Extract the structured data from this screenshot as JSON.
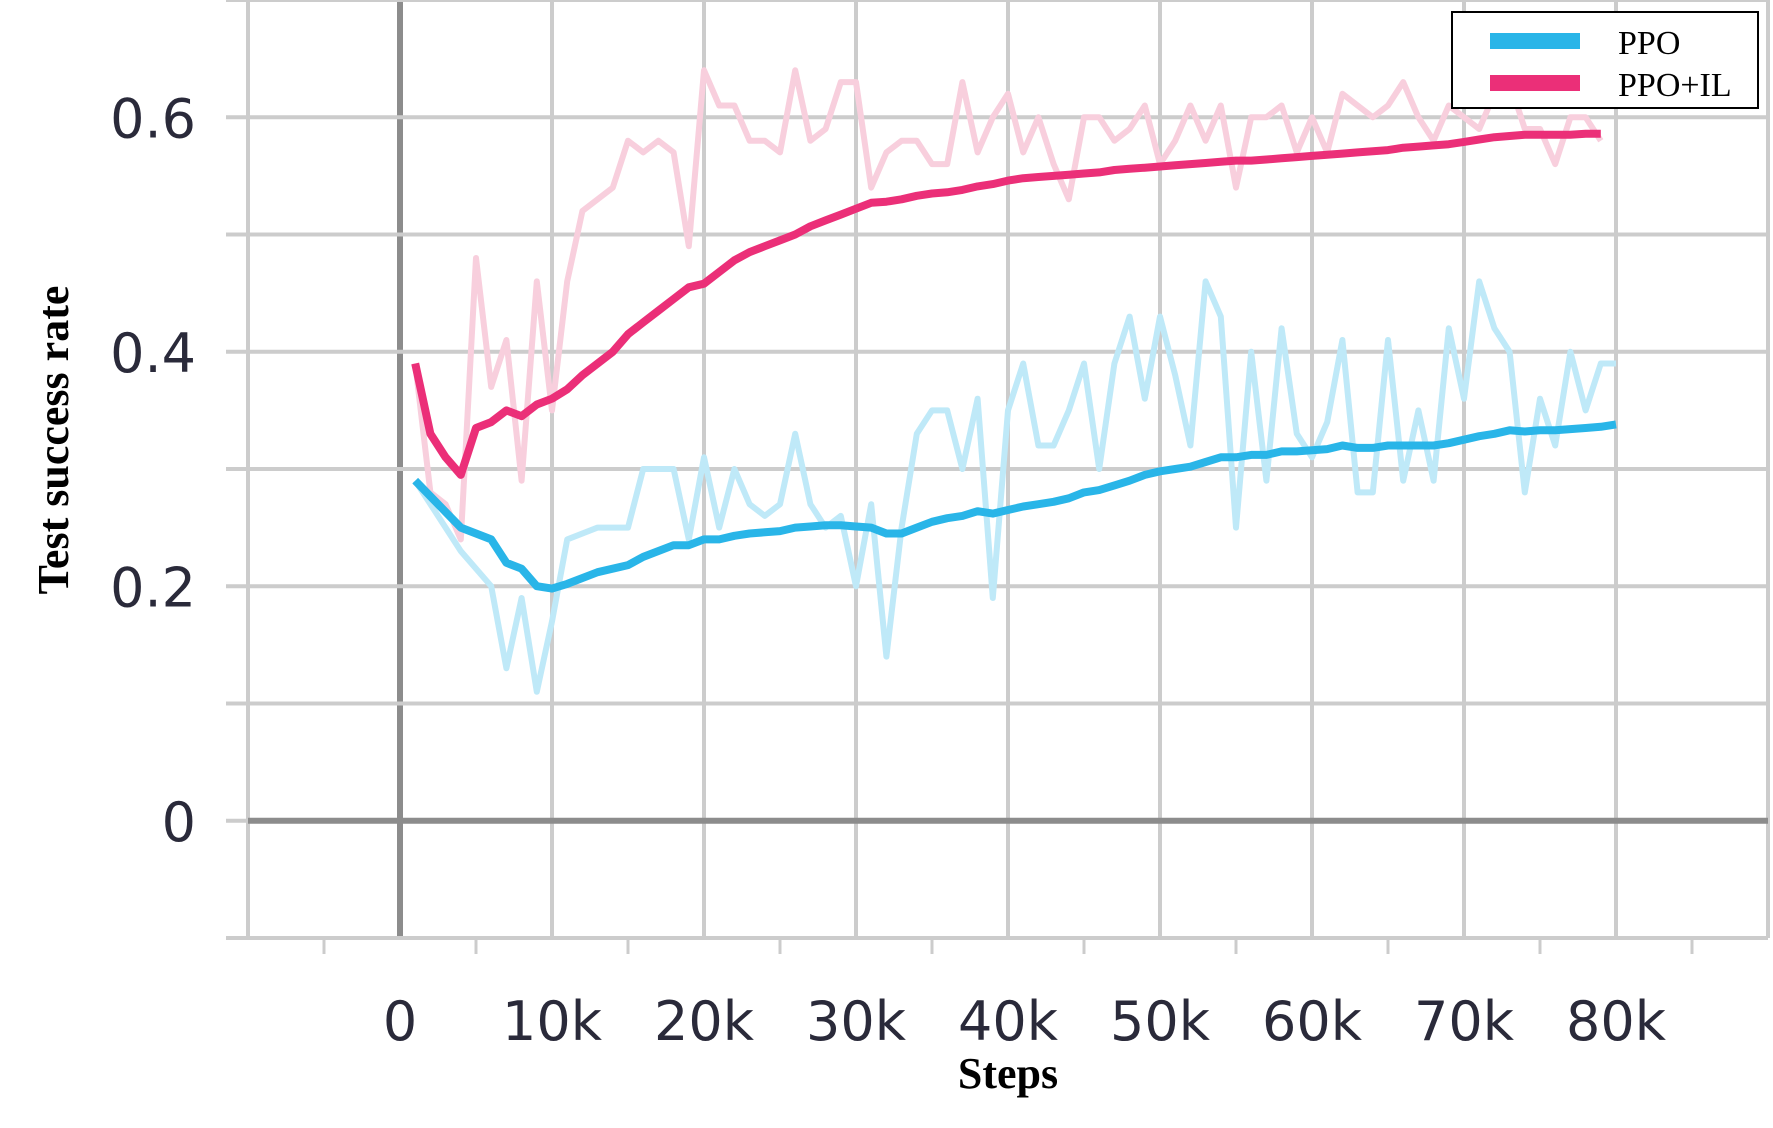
{
  "chart_data": {
    "type": "line",
    "xlabel": "Steps",
    "ylabel": "Test success rate",
    "xlim": [
      -10000,
      90000
    ],
    "ylim": [
      -0.1,
      0.7
    ],
    "x_ticks": [
      {
        "value": 0,
        "label": "0"
      },
      {
        "value": 10000,
        "label": "10k"
      },
      {
        "value": 20000,
        "label": "20k"
      },
      {
        "value": 30000,
        "label": "30k"
      },
      {
        "value": 40000,
        "label": "40k"
      },
      {
        "value": 50000,
        "label": "50k"
      },
      {
        "value": 60000,
        "label": "60k"
      },
      {
        "value": 70000,
        "label": "70k"
      },
      {
        "value": 80000,
        "label": "80k"
      }
    ],
    "y_ticks": [
      {
        "value": 0,
        "label": "0"
      },
      {
        "value": 0.2,
        "label": "0.2"
      },
      {
        "value": 0.4,
        "label": "0.4"
      },
      {
        "value": 0.6,
        "label": "0.6"
      }
    ],
    "grid": true,
    "legend_position": "top-right",
    "series": [
      {
        "name": "PPO",
        "color": "#29b5e8",
        "raw_color": "#bfe9f8",
        "x": [
          1000,
          4000,
          6000,
          7000,
          8000,
          9000,
          10000,
          11000,
          13000,
          15000,
          16000,
          18000,
          19000,
          20000,
          21000,
          22000,
          23000,
          24000,
          25000,
          26000,
          27000,
          28000,
          29000,
          30000,
          31000,
          32000,
          33000,
          34000,
          35000,
          36000,
          37000,
          38000,
          39000,
          40000,
          41000,
          42000,
          43000,
          44000,
          45000,
          46000,
          47000,
          48000,
          49000,
          50000,
          51000,
          52000,
          53000,
          54000,
          55000,
          56000,
          57000,
          58000,
          59000,
          60000,
          61000,
          62000,
          63000,
          64000,
          65000,
          66000,
          67000,
          68000,
          69000,
          70000,
          71000,
          72000,
          73000,
          74000,
          75000,
          76000,
          77000,
          78000,
          79000,
          80000
        ],
        "raw": [
          0.29,
          0.23,
          0.2,
          0.13,
          0.19,
          0.11,
          0.17,
          0.24,
          0.25,
          0.25,
          0.3,
          0.3,
          0.24,
          0.31,
          0.25,
          0.3,
          0.27,
          0.26,
          0.27,
          0.33,
          0.27,
          0.25,
          0.26,
          0.2,
          0.27,
          0.14,
          0.25,
          0.33,
          0.35,
          0.35,
          0.3,
          0.36,
          0.19,
          0.35,
          0.39,
          0.32,
          0.32,
          0.35,
          0.39,
          0.3,
          0.39,
          0.43,
          0.36,
          0.43,
          0.38,
          0.32,
          0.46,
          0.43,
          0.25,
          0.4,
          0.29,
          0.42,
          0.33,
          0.31,
          0.34,
          0.41,
          0.28,
          0.28,
          0.41,
          0.29,
          0.35,
          0.29,
          0.42,
          0.36,
          0.46,
          0.42,
          0.4,
          0.28,
          0.36,
          0.32,
          0.4,
          0.35,
          0.39,
          0.39
        ],
        "smooth": [
          0.29,
          0.25,
          0.24,
          0.22,
          0.215,
          0.2,
          0.198,
          0.202,
          0.212,
          0.218,
          0.225,
          0.235,
          0.235,
          0.24,
          0.24,
          0.243,
          0.245,
          0.246,
          0.247,
          0.25,
          0.251,
          0.252,
          0.252,
          0.251,
          0.25,
          0.245,
          0.245,
          0.25,
          0.255,
          0.258,
          0.26,
          0.264,
          0.262,
          0.265,
          0.268,
          0.27,
          0.272,
          0.275,
          0.28,
          0.282,
          0.286,
          0.29,
          0.295,
          0.298,
          0.3,
          0.302,
          0.306,
          0.31,
          0.31,
          0.312,
          0.312,
          0.315,
          0.315,
          0.316,
          0.317,
          0.32,
          0.318,
          0.318,
          0.32,
          0.32,
          0.32,
          0.32,
          0.322,
          0.325,
          0.328,
          0.33,
          0.333,
          0.332,
          0.333,
          0.333,
          0.334,
          0.335,
          0.336,
          0.338
        ]
      },
      {
        "name": "PPO+IL",
        "color": "#eb2f78",
        "raw_color": "#f8cfdd",
        "x": [
          1000,
          2000,
          3000,
          4000,
          5000,
          6000,
          7000,
          8000,
          9000,
          10000,
          11000,
          12000,
          14000,
          15000,
          16000,
          17000,
          18000,
          19000,
          20000,
          21000,
          22000,
          23000,
          24000,
          25000,
          26000,
          27000,
          28000,
          29000,
          30000,
          31000,
          32000,
          33000,
          34000,
          35000,
          36000,
          37000,
          38000,
          39000,
          40000,
          41000,
          42000,
          43000,
          44000,
          45000,
          46000,
          47000,
          48000,
          49000,
          50000,
          51000,
          52000,
          53000,
          54000,
          55000,
          56000,
          57000,
          58000,
          59000,
          60000,
          61000,
          62000,
          63000,
          64000,
          65000,
          66000,
          67000,
          68000,
          69000,
          70000,
          71000,
          72000,
          73000,
          74000,
          75000,
          76000,
          77000,
          78000,
          79000
        ],
        "raw": [
          0.39,
          0.28,
          0.27,
          0.24,
          0.48,
          0.37,
          0.41,
          0.29,
          0.46,
          0.35,
          0.46,
          0.52,
          0.54,
          0.58,
          0.57,
          0.58,
          0.57,
          0.49,
          0.64,
          0.61,
          0.61,
          0.58,
          0.58,
          0.57,
          0.64,
          0.58,
          0.59,
          0.63,
          0.63,
          0.54,
          0.57,
          0.58,
          0.58,
          0.56,
          0.56,
          0.63,
          0.57,
          0.6,
          0.62,
          0.57,
          0.6,
          0.56,
          0.53,
          0.6,
          0.6,
          0.58,
          0.59,
          0.61,
          0.56,
          0.58,
          0.61,
          0.58,
          0.61,
          0.54,
          0.6,
          0.6,
          0.61,
          0.57,
          0.6,
          0.57,
          0.62,
          0.61,
          0.6,
          0.61,
          0.63,
          0.6,
          0.58,
          0.61,
          0.6,
          0.59,
          0.62,
          0.63,
          0.59,
          0.59,
          0.56,
          0.6,
          0.6,
          0.58
        ],
        "smooth": [
          0.39,
          0.33,
          0.31,
          0.295,
          0.335,
          0.34,
          0.35,
          0.345,
          0.355,
          0.36,
          0.368,
          0.38,
          0.4,
          0.415,
          0.425,
          0.435,
          0.445,
          0.455,
          0.458,
          0.468,
          0.478,
          0.485,
          0.49,
          0.495,
          0.5,
          0.507,
          0.512,
          0.517,
          0.522,
          0.527,
          0.528,
          0.53,
          0.533,
          0.535,
          0.536,
          0.538,
          0.541,
          0.543,
          0.546,
          0.548,
          0.549,
          0.55,
          0.551,
          0.552,
          0.553,
          0.555,
          0.556,
          0.557,
          0.558,
          0.559,
          0.56,
          0.561,
          0.562,
          0.563,
          0.563,
          0.564,
          0.565,
          0.566,
          0.567,
          0.568,
          0.569,
          0.57,
          0.571,
          0.572,
          0.574,
          0.575,
          0.576,
          0.577,
          0.579,
          0.581,
          0.583,
          0.584,
          0.585,
          0.585,
          0.585,
          0.585,
          0.586,
          0.586
        ]
      }
    ]
  }
}
